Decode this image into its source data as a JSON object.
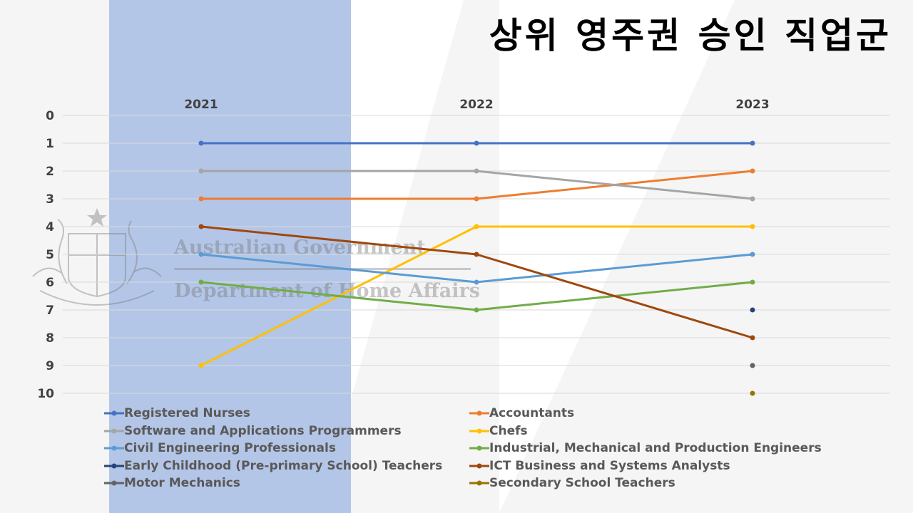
{
  "title": "상위 영주권 승인 직업군",
  "watermark": {
    "line1": "Australian Government",
    "line2": "Department of Home Affairs"
  },
  "chart_data": {
    "type": "line",
    "categories": [
      "2021",
      "2022",
      "2023"
    ],
    "y_ticks": [
      "0",
      "1",
      "2",
      "3",
      "4",
      "5",
      "6",
      "7",
      "8",
      "9",
      "10"
    ],
    "ylim": [
      0,
      10
    ],
    "y_inverted": true,
    "grid": true,
    "legend_position": "bottom",
    "series": [
      {
        "name": "Registered Nurses",
        "color": "#4472C4",
        "values": [
          1,
          1,
          1
        ]
      },
      {
        "name": "Accountants",
        "color": "#ED7D31",
        "values": [
          3,
          3,
          2
        ]
      },
      {
        "name": "Software and Applications Programmers",
        "color": "#A5A5A5",
        "values": [
          2,
          2,
          3
        ]
      },
      {
        "name": "Chefs",
        "color": "#FFC000",
        "values": [
          9,
          4,
          4
        ]
      },
      {
        "name": "Civil Engineering Professionals",
        "color": "#5B9BD5",
        "values": [
          5,
          6,
          5
        ]
      },
      {
        "name": "Industrial, Mechanical and Production Engineers",
        "color": "#70AD47",
        "values": [
          6,
          7,
          6
        ]
      },
      {
        "name": "Early Childhood (Pre-primary School) Teachers",
        "color": "#264478",
        "values": [
          null,
          null,
          7
        ]
      },
      {
        "name": "ICT Business and Systems Analysts",
        "color": "#9E480E",
        "values": [
          4,
          5,
          8
        ]
      },
      {
        "name": "Motor Mechanics",
        "color": "#636363",
        "values": [
          null,
          null,
          9
        ]
      },
      {
        "name": "Secondary School Teachers",
        "color": "#997300",
        "values": [
          null,
          null,
          10
        ]
      }
    ]
  }
}
